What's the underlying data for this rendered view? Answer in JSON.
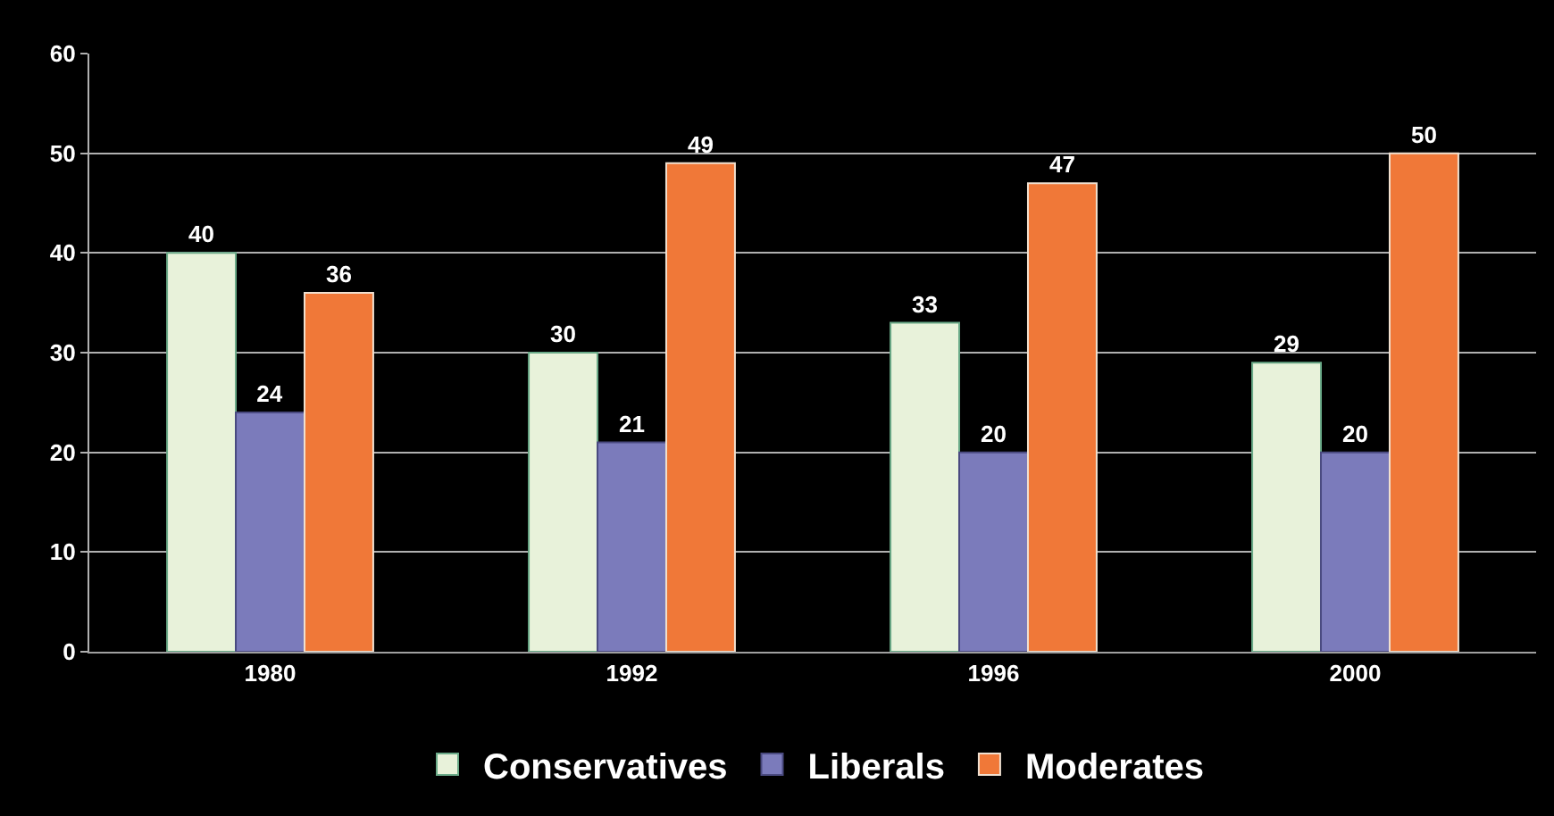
{
  "chart_data": {
    "type": "bar",
    "categories": [
      "1980",
      "1992",
      "1996",
      "2000"
    ],
    "series": [
      {
        "name": "Conservatives",
        "color": "#e8f2da",
        "values": [
          40,
          30,
          33,
          29
        ]
      },
      {
        "name": "Liberals",
        "color": "#7b7bbb",
        "values": [
          24,
          21,
          20,
          20
        ]
      },
      {
        "name": "Moderates",
        "color": "#f07838",
        "values": [
          36,
          49,
          47,
          50
        ]
      }
    ],
    "ylim": [
      0,
      60
    ],
    "yticks": [
      0,
      10,
      20,
      30,
      40,
      50,
      60
    ],
    "grid": "y",
    "legend": "bottom",
    "data_labels": true
  }
}
